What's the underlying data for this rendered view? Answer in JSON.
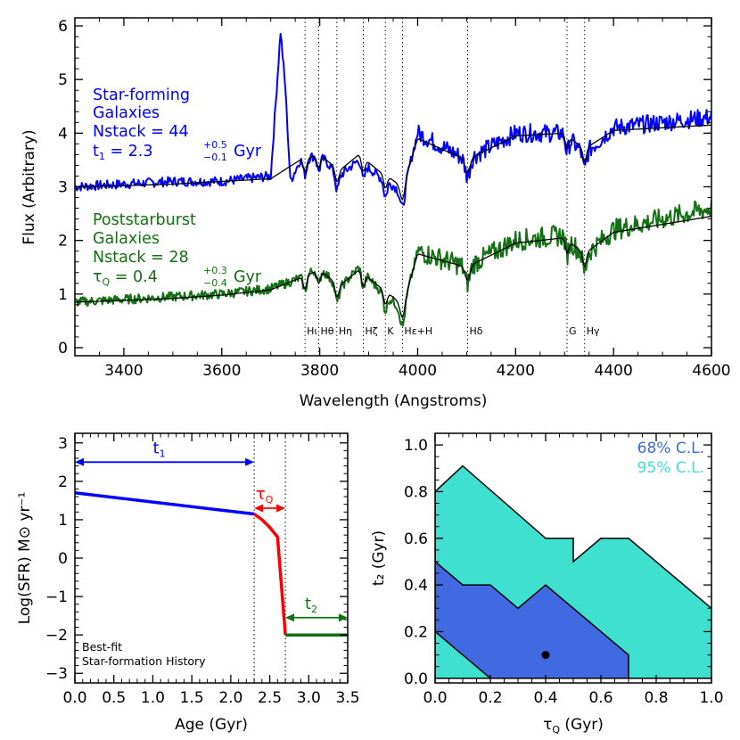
{
  "chart_data": [
    {
      "type": "line",
      "xlabel": "Wavelength (Angstroms)",
      "ylabel": "Flux (Arbitrary)",
      "xlim": [
        3300,
        4600
      ],
      "ylim": [
        -0.15,
        6.15
      ],
      "xticks": [
        "3400",
        "3600",
        "3800",
        "4000",
        "4200",
        "4400",
        "4600"
      ],
      "yticks": [
        "0",
        "1",
        "2",
        "3",
        "4",
        "5",
        "6"
      ],
      "grid": false,
      "series": [
        {
          "name": "Star-forming Galaxies",
          "color": "#0000ff",
          "label_lines": [
            "Star-forming",
            "Galaxies",
            "Nstack = 44"
          ],
          "param_symbol": "t",
          "param_sub": "1",
          "param_eq": " = 2.3",
          "param_sup": "+0.5",
          "param_low": "−0.1",
          "param_unit": "Gyr",
          "x": [
            3300,
            3400,
            3500,
            3600,
            3700,
            3720,
            3730,
            3740,
            3760,
            3800,
            3840,
            3880,
            3920,
            3970,
            4000,
            4100,
            4200,
            4300,
            4340,
            4400,
            4500,
            4600
          ],
          "y": [
            3.0,
            3.05,
            3.1,
            3.1,
            3.2,
            5.9,
            4.8,
            3.1,
            3.5,
            3.6,
            3.2,
            3.5,
            3.2,
            2.9,
            4.0,
            3.5,
            4.0,
            4.0,
            3.6,
            4.1,
            4.2,
            4.3
          ]
        },
        {
          "name": "Star-forming model",
          "color": "#000000",
          "x": [
            3300,
            3400,
            3500,
            3600,
            3700,
            3760,
            3800,
            3840,
            3880,
            3920,
            3970,
            4000,
            4100,
            4200,
            4300,
            4340,
            4400,
            4500,
            4600
          ],
          "y": [
            3.0,
            3.02,
            3.05,
            3.1,
            3.15,
            3.5,
            3.6,
            3.3,
            3.6,
            3.3,
            3.0,
            3.9,
            3.5,
            3.95,
            4.0,
            3.7,
            4.05,
            4.1,
            4.15
          ]
        },
        {
          "name": "Poststarburst Galaxies",
          "color": "#137113",
          "label_lines": [
            "Poststarburst",
            "Galaxies",
            "Nstack = 28"
          ],
          "param_symbol": "τ",
          "param_sub": "Q",
          "param_eq": " = 0.4",
          "param_sup": "+0.3",
          "param_low": "−0.4",
          "param_unit": "Gyr",
          "x": [
            3300,
            3400,
            3500,
            3600,
            3700,
            3760,
            3800,
            3840,
            3880,
            3920,
            3970,
            4000,
            4100,
            4200,
            4300,
            4340,
            4400,
            4500,
            4600
          ],
          "y": [
            0.85,
            0.9,
            0.95,
            1.0,
            1.1,
            1.3,
            1.5,
            1.1,
            1.5,
            1.1,
            0.7,
            1.8,
            1.5,
            2.0,
            2.1,
            1.7,
            2.2,
            2.4,
            2.6
          ]
        },
        {
          "name": "Poststarburst model",
          "color": "#000000",
          "x": [
            3300,
            3400,
            3500,
            3600,
            3700,
            3760,
            3800,
            3840,
            3880,
            3920,
            3970,
            4000,
            4100,
            4200,
            4300,
            4340,
            4400,
            4500,
            4600
          ],
          "y": [
            0.85,
            0.88,
            0.92,
            0.98,
            1.08,
            1.3,
            1.45,
            1.15,
            1.45,
            1.15,
            0.8,
            1.75,
            1.5,
            1.95,
            2.05,
            1.75,
            2.15,
            2.3,
            2.45
          ]
        }
      ],
      "lines": [
        {
          "x": 3770,
          "label": "Hι"
        },
        {
          "x": 3798,
          "label": "Hθ"
        },
        {
          "x": 3835,
          "label": "Hη"
        },
        {
          "x": 3889,
          "label": "Hζ"
        },
        {
          "x": 3934,
          "label": "K"
        },
        {
          "x": 3969,
          "label": "Hε+H"
        },
        {
          "x": 4102,
          "label": "Hδ"
        },
        {
          "x": 4305,
          "label": "G"
        },
        {
          "x": 4341,
          "label": "Hγ"
        }
      ]
    },
    {
      "type": "line",
      "xlabel": "Age (Gyr)",
      "ylabel": "Log(SFR) M⊙ yr⁻¹",
      "xlim": [
        0,
        3.5
      ],
      "ylim": [
        -3.25,
        3.25
      ],
      "xticks": [
        "0.0",
        "0.5",
        "1.0",
        "1.5",
        "2.0",
        "2.5",
        "3.0",
        "3.5"
      ],
      "yticks": [
        "−3",
        "−2",
        "−1",
        "0",
        "1",
        "2",
        "3"
      ],
      "vlines": [
        2.3,
        2.7
      ],
      "series": [
        {
          "name": "constant phase",
          "color": "#0000ff",
          "x": [
            0.0,
            2.3
          ],
          "y": [
            1.7,
            1.15
          ]
        },
        {
          "name": "quenching phase",
          "color": "#ff0000",
          "x": [
            2.3,
            2.4,
            2.5,
            2.6,
            2.7
          ],
          "y": [
            1.15,
            1.0,
            0.8,
            0.55,
            -2.0
          ]
        },
        {
          "name": "quiescent phase",
          "color": "#137113",
          "x": [
            2.7,
            3.5
          ],
          "y": [
            -2.0,
            -2.0
          ]
        }
      ],
      "arrows": [
        {
          "label": "t",
          "sub": "1",
          "from": 0.0,
          "to": 2.3,
          "y": 2.5,
          "color": "#0000ff"
        },
        {
          "label": "τ",
          "sub": "Q",
          "from": 2.3,
          "to": 2.7,
          "y": 1.3,
          "color": "#ff0000"
        },
        {
          "label": "t",
          "sub": "2",
          "from": 2.7,
          "to": 3.5,
          "y": -1.55,
          "color": "#137113"
        }
      ],
      "annotation": [
        "Best-fit",
        "Star-formation History"
      ]
    },
    {
      "type": "area",
      "xlabel_symbol": "τ",
      "xlabel_sub": "Q",
      "xlabel_unit": " (Gyr)",
      "ylabel": "t₂ (Gyr)",
      "xlim": [
        0,
        1
      ],
      "ylim": [
        0,
        1
      ],
      "xticks": [
        "0.0",
        "0.2",
        "0.4",
        "0.6",
        "0.8",
        "1.0"
      ],
      "yticks": [
        "0.0",
        "0.2",
        "0.4",
        "0.6",
        "0.8",
        "1.0"
      ],
      "regions": [
        {
          "name": "95% C.L.",
          "color": "#40e0d0",
          "polygon": [
            [
              0,
              0.8
            ],
            [
              0.1,
              0.91
            ],
            [
              0.4,
              0.6
            ],
            [
              0.5,
              0.6
            ],
            [
              0.5,
              0.5
            ],
            [
              0.6,
              0.6
            ],
            [
              0.7,
              0.6
            ],
            [
              1.0,
              0.3
            ],
            [
              1.0,
              0
            ],
            [
              0,
              0
            ]
          ]
        },
        {
          "name": "68% C.L.",
          "color": "#4169e1",
          "polygon": [
            [
              0,
              0.5
            ],
            [
              0.1,
              0.4
            ],
            [
              0.2,
              0.4
            ],
            [
              0.3,
              0.3
            ],
            [
              0.4,
              0.4
            ],
            [
              0.6,
              0.2
            ],
            [
              0.7,
              0.1
            ],
            [
              0.7,
              0
            ],
            [
              0.2,
              0
            ],
            [
              0.1,
              0.1
            ],
            [
              0,
              0.2
            ]
          ]
        }
      ],
      "best_fit": {
        "x": 0.4,
        "y": 0.1
      },
      "legend": [
        {
          "text": "68% C.L.",
          "color": "#4169e1"
        },
        {
          "text": "95% C.L.",
          "color": "#40e0d0"
        }
      ],
      "legend_position": "top-right"
    }
  ]
}
